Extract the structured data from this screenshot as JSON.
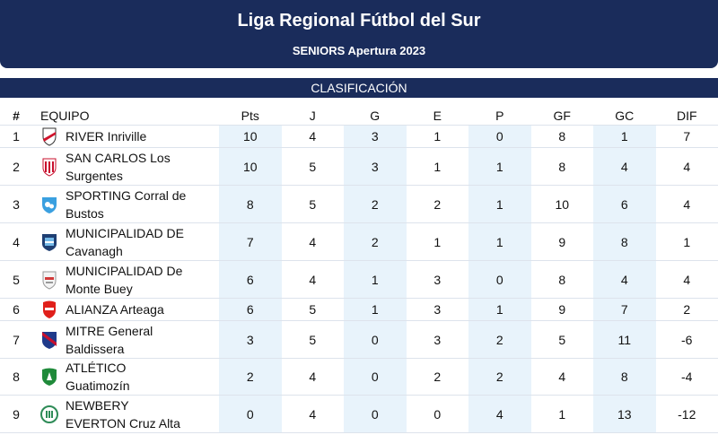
{
  "header": {
    "title": "Liga Regional Fútbol del Sur",
    "subtitle": "SENIORS Apertura 2023"
  },
  "section_title": "CLASIFICACIÓN",
  "columns": {
    "pos": "#",
    "team": "EQUIPO",
    "pts": "Pts",
    "j": "J",
    "g": "G",
    "e": "E",
    "p": "P",
    "gf": "GF",
    "gc": "GC",
    "dif": "DIF"
  },
  "colors": {
    "header_bg": "#1a2c5b",
    "highlight_column": "#e8f3fb"
  },
  "rows": [
    {
      "pos": "1",
      "team": "RIVER Inriville",
      "crest": "river-crest-icon",
      "pts": "10",
      "j": "4",
      "g": "3",
      "e": "1",
      "p": "0",
      "gf": "8",
      "gc": "1",
      "dif": "7"
    },
    {
      "pos": "2",
      "team": "SAN CARLOS Los Surgentes",
      "crest": "san-carlos-crest-icon",
      "pts": "10",
      "j": "5",
      "g": "3",
      "e": "1",
      "p": "1",
      "gf": "8",
      "gc": "4",
      "dif": "4"
    },
    {
      "pos": "3",
      "team": "SPORTING Corral de Bustos",
      "crest": "sporting-crest-icon",
      "pts": "8",
      "j": "5",
      "g": "2",
      "e": "2",
      "p": "1",
      "gf": "10",
      "gc": "6",
      "dif": "4"
    },
    {
      "pos": "4",
      "team": "MUNICIPALIDAD DE Cavanagh",
      "crest": "municipalidad-cavanagh-crest-icon",
      "pts": "7",
      "j": "4",
      "g": "2",
      "e": "1",
      "p": "1",
      "gf": "9",
      "gc": "8",
      "dif": "1"
    },
    {
      "pos": "5",
      "team": "MUNICIPALIDAD De Monte Buey",
      "crest": "municipalidad-monte-buey-crest-icon",
      "pts": "6",
      "j": "4",
      "g": "1",
      "e": "3",
      "p": "0",
      "gf": "8",
      "gc": "4",
      "dif": "4"
    },
    {
      "pos": "6",
      "team": "ALIANZA Arteaga",
      "crest": "alianza-crest-icon",
      "pts": "6",
      "j": "5",
      "g": "1",
      "e": "3",
      "p": "1",
      "gf": "9",
      "gc": "7",
      "dif": "2"
    },
    {
      "pos": "7",
      "team": "MITRE General Baldissera",
      "crest": "mitre-crest-icon",
      "pts": "3",
      "j": "5",
      "g": "0",
      "e": "3",
      "p": "2",
      "gf": "5",
      "gc": "11",
      "dif": "-6"
    },
    {
      "pos": "8",
      "team": "ATLÉTICO Guatimozín",
      "crest": "atletico-crest-icon",
      "pts": "2",
      "j": "4",
      "g": "0",
      "e": "2",
      "p": "2",
      "gf": "4",
      "gc": "8",
      "dif": "-4"
    },
    {
      "pos": "9",
      "team": "NEWBERY EVERTON Cruz Alta",
      "crest": "newbery-crest-icon",
      "pts": "0",
      "j": "4",
      "g": "0",
      "e": "0",
      "p": "4",
      "gf": "1",
      "gc": "13",
      "dif": "-12"
    }
  ]
}
